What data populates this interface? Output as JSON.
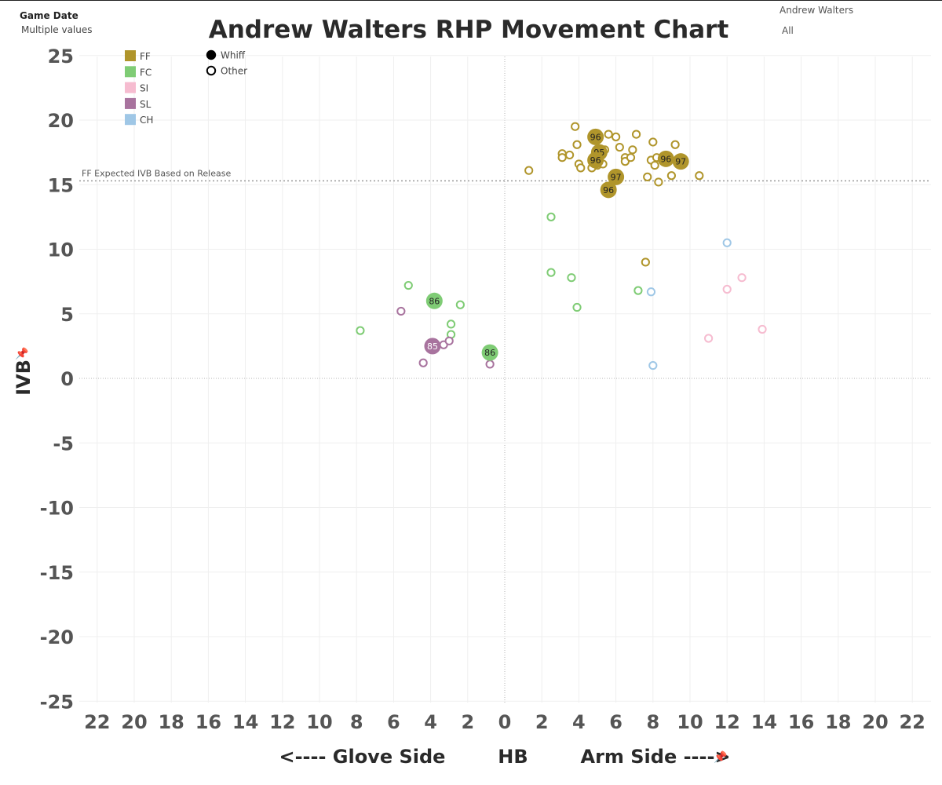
{
  "filters": {
    "game_date_title": "Game Date",
    "game_date_value": "Multiple values",
    "player_title": "Andrew Walters",
    "player_value": "All"
  },
  "chart_data": {
    "type": "scatter",
    "title": "Andrew Walters RHP Movement Chart",
    "xlabel": "<---- Glove Side        HB        Arm Side ---->",
    "ylabel": "IVB",
    "xlim": [
      -22.5,
      22.5
    ],
    "ylim": [
      -26,
      26
    ],
    "x_ticks": [
      -22,
      -20,
      -18,
      -16,
      -14,
      -12,
      -10,
      -8,
      -6,
      -4,
      -2,
      0,
      2,
      4,
      6,
      8,
      10,
      12,
      14,
      16,
      18,
      20,
      22
    ],
    "x_tick_labels": [
      "22",
      "20",
      "18",
      "16",
      "14",
      "12",
      "10",
      "8",
      "6",
      "4",
      "2",
      "0",
      "2",
      "4",
      "6",
      "8",
      "10",
      "12",
      "14",
      "16",
      "18",
      "20",
      "22"
    ],
    "y_ticks": [
      25,
      20,
      15,
      10,
      5,
      0,
      -5,
      -10,
      -15,
      -20,
      -25
    ],
    "y_tick_labels": [
      "25",
      "20",
      "15",
      "10",
      "5",
      "0",
      "-5",
      "-10",
      "-15",
      "-20",
      "-25"
    ],
    "grid": true,
    "reference_line": {
      "label": "FF Expected IVB Based on Release",
      "y": 15.3
    },
    "legend_pitch": [
      {
        "name": "FF",
        "color": "#b0952b"
      },
      {
        "name": "FC",
        "color": "#7fcc75"
      },
      {
        "name": "SI",
        "color": "#f6bcd0"
      },
      {
        "name": "SL",
        "color": "#a8739e"
      },
      {
        "name": "CH",
        "color": "#9fc7e6"
      }
    ],
    "legend_result": [
      {
        "name": "Whiff",
        "filled": true
      },
      {
        "name": "Other",
        "filled": false
      }
    ],
    "series": [
      {
        "name": "FF",
        "color": "#b0952b",
        "points": [
          {
            "x": 4.9,
            "y": 18.7,
            "whiff": true,
            "label": "96"
          },
          {
            "x": 5.1,
            "y": 17.5,
            "whiff": true,
            "label": "95"
          },
          {
            "x": 4.9,
            "y": 16.9,
            "whiff": true,
            "label": "96"
          },
          {
            "x": 8.7,
            "y": 17.0,
            "whiff": true,
            "label": "96"
          },
          {
            "x": 9.5,
            "y": 16.8,
            "whiff": true,
            "label": "97"
          },
          {
            "x": 6.0,
            "y": 15.6,
            "whiff": true,
            "label": "97"
          },
          {
            "x": 5.6,
            "y": 14.6,
            "whiff": true,
            "label": "96"
          },
          {
            "x": 1.3,
            "y": 16.1,
            "whiff": false
          },
          {
            "x": 3.8,
            "y": 19.5,
            "whiff": false
          },
          {
            "x": 3.9,
            "y": 18.1,
            "whiff": false
          },
          {
            "x": 3.1,
            "y": 17.4,
            "whiff": false
          },
          {
            "x": 3.1,
            "y": 17.1,
            "whiff": false
          },
          {
            "x": 3.5,
            "y": 17.3,
            "whiff": false
          },
          {
            "x": 4.0,
            "y": 16.6,
            "whiff": false
          },
          {
            "x": 4.1,
            "y": 16.3,
            "whiff": false
          },
          {
            "x": 4.7,
            "y": 16.3,
            "whiff": false
          },
          {
            "x": 5.0,
            "y": 16.5,
            "whiff": false
          },
          {
            "x": 5.3,
            "y": 16.6,
            "whiff": false
          },
          {
            "x": 5.4,
            "y": 17.7,
            "whiff": false
          },
          {
            "x": 5.6,
            "y": 18.9,
            "whiff": false
          },
          {
            "x": 6.0,
            "y": 18.7,
            "whiff": false
          },
          {
            "x": 6.2,
            "y": 17.9,
            "whiff": false
          },
          {
            "x": 6.5,
            "y": 17.1,
            "whiff": false
          },
          {
            "x": 6.5,
            "y": 16.8,
            "whiff": false
          },
          {
            "x": 6.8,
            "y": 17.1,
            "whiff": false
          },
          {
            "x": 6.9,
            "y": 17.7,
            "whiff": false
          },
          {
            "x": 7.1,
            "y": 18.9,
            "whiff": false
          },
          {
            "x": 8.0,
            "y": 18.3,
            "whiff": false
          },
          {
            "x": 7.9,
            "y": 16.9,
            "whiff": false
          },
          {
            "x": 8.1,
            "y": 16.5,
            "whiff": false
          },
          {
            "x": 8.2,
            "y": 17.1,
            "whiff": false
          },
          {
            "x": 7.7,
            "y": 15.6,
            "whiff": false
          },
          {
            "x": 8.3,
            "y": 15.2,
            "whiff": false
          },
          {
            "x": 9.0,
            "y": 15.7,
            "whiff": false
          },
          {
            "x": 9.2,
            "y": 18.1,
            "whiff": false
          },
          {
            "x": 10.5,
            "y": 15.7,
            "whiff": false
          },
          {
            "x": 7.6,
            "y": 9.0,
            "whiff": false
          }
        ]
      },
      {
        "name": "FC",
        "color": "#7fcc75",
        "points": [
          {
            "x": -3.8,
            "y": 6.0,
            "whiff": true,
            "label": "86"
          },
          {
            "x": -0.8,
            "y": 2.0,
            "whiff": true,
            "label": "86"
          },
          {
            "x": -7.8,
            "y": 3.7,
            "whiff": false
          },
          {
            "x": -5.2,
            "y": 7.2,
            "whiff": false
          },
          {
            "x": -2.4,
            "y": 5.7,
            "whiff": false
          },
          {
            "x": -2.9,
            "y": 4.2,
            "whiff": false
          },
          {
            "x": -2.9,
            "y": 3.4,
            "whiff": false
          },
          {
            "x": 2.5,
            "y": 12.5,
            "whiff": false
          },
          {
            "x": 2.5,
            "y": 8.2,
            "whiff": false
          },
          {
            "x": 3.6,
            "y": 7.8,
            "whiff": false
          },
          {
            "x": 3.9,
            "y": 5.5,
            "whiff": false
          },
          {
            "x": 7.2,
            "y": 6.8,
            "whiff": false
          }
        ]
      },
      {
        "name": "SI",
        "color": "#f6bcd0",
        "points": [
          {
            "x": 12.0,
            "y": 6.9,
            "whiff": false
          },
          {
            "x": 12.8,
            "y": 7.8,
            "whiff": false
          },
          {
            "x": 11.0,
            "y": 3.1,
            "whiff": false
          },
          {
            "x": 13.9,
            "y": 3.8,
            "whiff": false
          }
        ]
      },
      {
        "name": "SL",
        "color": "#a8739e",
        "points": [
          {
            "x": -3.9,
            "y": 2.5,
            "whiff": true,
            "label": "85"
          },
          {
            "x": -5.6,
            "y": 5.2,
            "whiff": false
          },
          {
            "x": -3.3,
            "y": 2.6,
            "whiff": false
          },
          {
            "x": -3.0,
            "y": 2.9,
            "whiff": false
          },
          {
            "x": -4.4,
            "y": 1.2,
            "whiff": false
          },
          {
            "x": -0.8,
            "y": 1.1,
            "whiff": false
          }
        ]
      },
      {
        "name": "CH",
        "color": "#9fc7e6",
        "points": [
          {
            "x": 12.0,
            "y": 10.5,
            "whiff": false
          },
          {
            "x": 7.9,
            "y": 6.7,
            "whiff": false
          },
          {
            "x": 8.0,
            "y": 1.0,
            "whiff": false
          }
        ]
      }
    ]
  }
}
